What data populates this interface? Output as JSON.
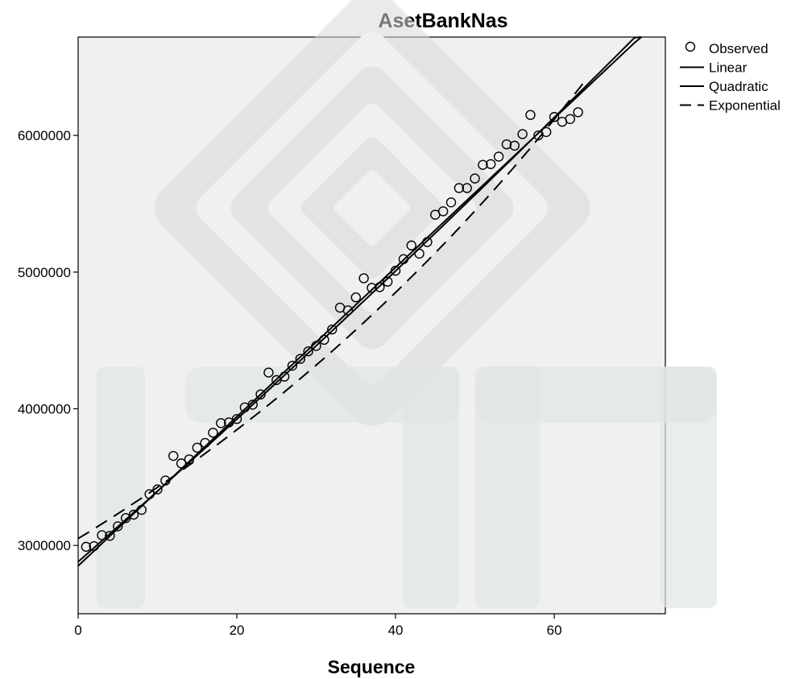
{
  "chart_data": {
    "type": "scatter",
    "title": "AsetBankNas",
    "xlabel": "Sequence",
    "ylabel": "",
    "xlim": [
      0,
      74
    ],
    "ylim": [
      2500000,
      6720000
    ],
    "x_ticks": [
      0,
      20,
      40,
      60
    ],
    "y_ticks": [
      3000000,
      4000000,
      5000000,
      6000000
    ],
    "grid": false,
    "legend_position": "right",
    "series": [
      {
        "name": "Observed",
        "kind": "points",
        "x": [
          1,
          2,
          3,
          4,
          5,
          6,
          7,
          8,
          9,
          10,
          11,
          12,
          13,
          14,
          15,
          16,
          17,
          18,
          19,
          20,
          21,
          22,
          23,
          24,
          25,
          26,
          27,
          28,
          29,
          30,
          31,
          32,
          33,
          34,
          35,
          36,
          37,
          38,
          39,
          40,
          41,
          42,
          43,
          44,
          45,
          46,
          47,
          48,
          49,
          50,
          51,
          52,
          53,
          54,
          55,
          56,
          57,
          58,
          59,
          60,
          61,
          62,
          63
        ],
        "y": [
          2990000,
          2995000,
          3075000,
          3070000,
          3140000,
          3200000,
          3225000,
          3260000,
          3375000,
          3410000,
          3475000,
          3655000,
          3600000,
          3630000,
          3715000,
          3750000,
          3825000,
          3895000,
          3900000,
          3925000,
          4010000,
          4030000,
          4105000,
          4265000,
          4210000,
          4235000,
          4315000,
          4365000,
          4420000,
          4460000,
          4505000,
          4580000,
          4740000,
          4720000,
          4815000,
          4955000,
          4885000,
          4890000,
          4930000,
          5010000,
          5095000,
          5195000,
          5135000,
          5220000,
          5420000,
          5445000,
          5510000,
          5615000,
          5615000,
          5685000,
          5785000,
          5790000,
          5845000,
          5935000,
          5925000,
          6010000,
          6150000,
          6000000,
          6025000,
          6135000,
          6100000,
          6120000,
          6170000
        ]
      },
      {
        "name": "Linear",
        "kind": "line",
        "intercept": 2850000,
        "slope": 54600,
        "x_range": [
          0,
          71
        ]
      },
      {
        "name": "Quadratic",
        "kind": "line",
        "a": 2880000,
        "b": 51200,
        "c": 50,
        "x_range": [
          0,
          71
        ]
      },
      {
        "name": "Exponential",
        "kind": "dashed",
        "a": 3050000,
        "rate": 0.0116,
        "x_range": [
          0,
          64
        ]
      }
    ]
  }
}
